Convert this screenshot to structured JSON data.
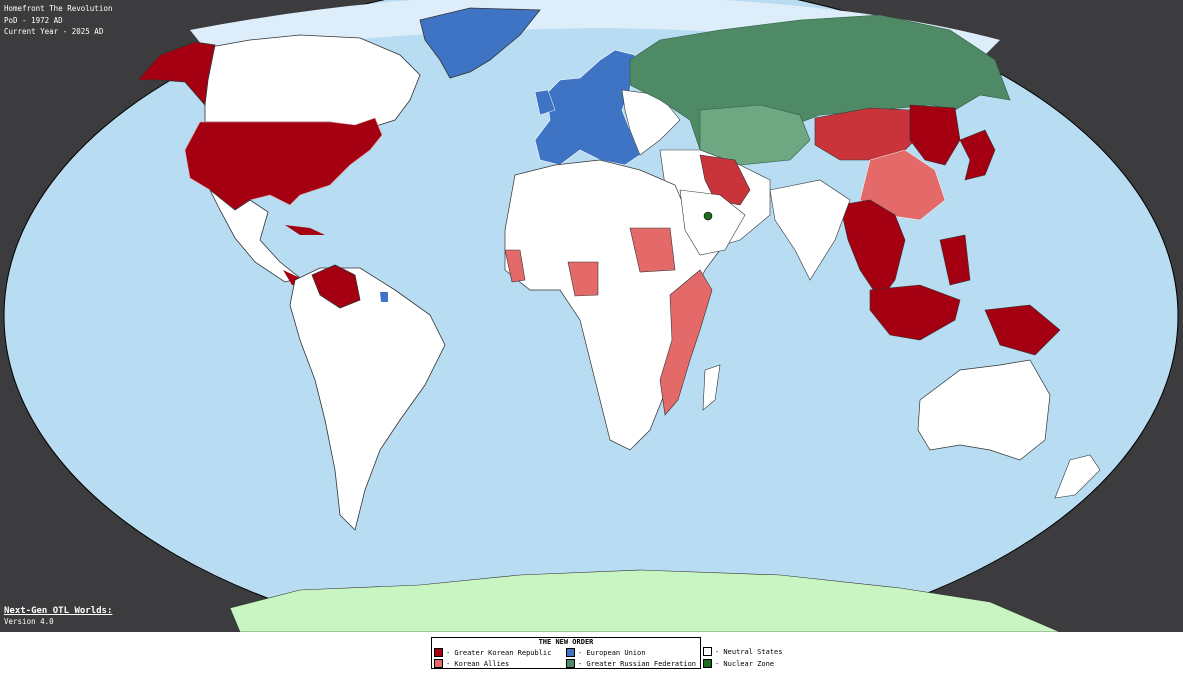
{
  "header": {
    "line1": "Homefront The Revolution",
    "line2": "PoD - 1972 AD",
    "line3": "Current Year - 2025 AD"
  },
  "credit": {
    "series": "Next-Gen OTL Worlds:",
    "version": "Version 4.0"
  },
  "legend": {
    "title": "THE NEW ORDER",
    "items": [
      {
        "label": "- Greater Korean Republic",
        "color": "#a50012"
      },
      {
        "label": "- Korean Allies",
        "color": "#e46a6a"
      },
      {
        "label": "- European Union",
        "color": "#3f74c4"
      },
      {
        "label": "- Greater Russian Federation",
        "color": "#4f8a66"
      },
      {
        "label": "- Neutral States",
        "color": "#ffffff"
      },
      {
        "label": "- Nuclear Zone",
        "color": "#1d6b1d"
      }
    ]
  },
  "palette": {
    "ocean": "#b8dcf2",
    "ice": "#ddeefa",
    "antarctica": "#c9f5c2",
    "background": "#3c3c3f",
    "russia_dark": "#4f8a66",
    "russia_light": "#6ea883",
    "korean_mid": "#c8343a"
  }
}
